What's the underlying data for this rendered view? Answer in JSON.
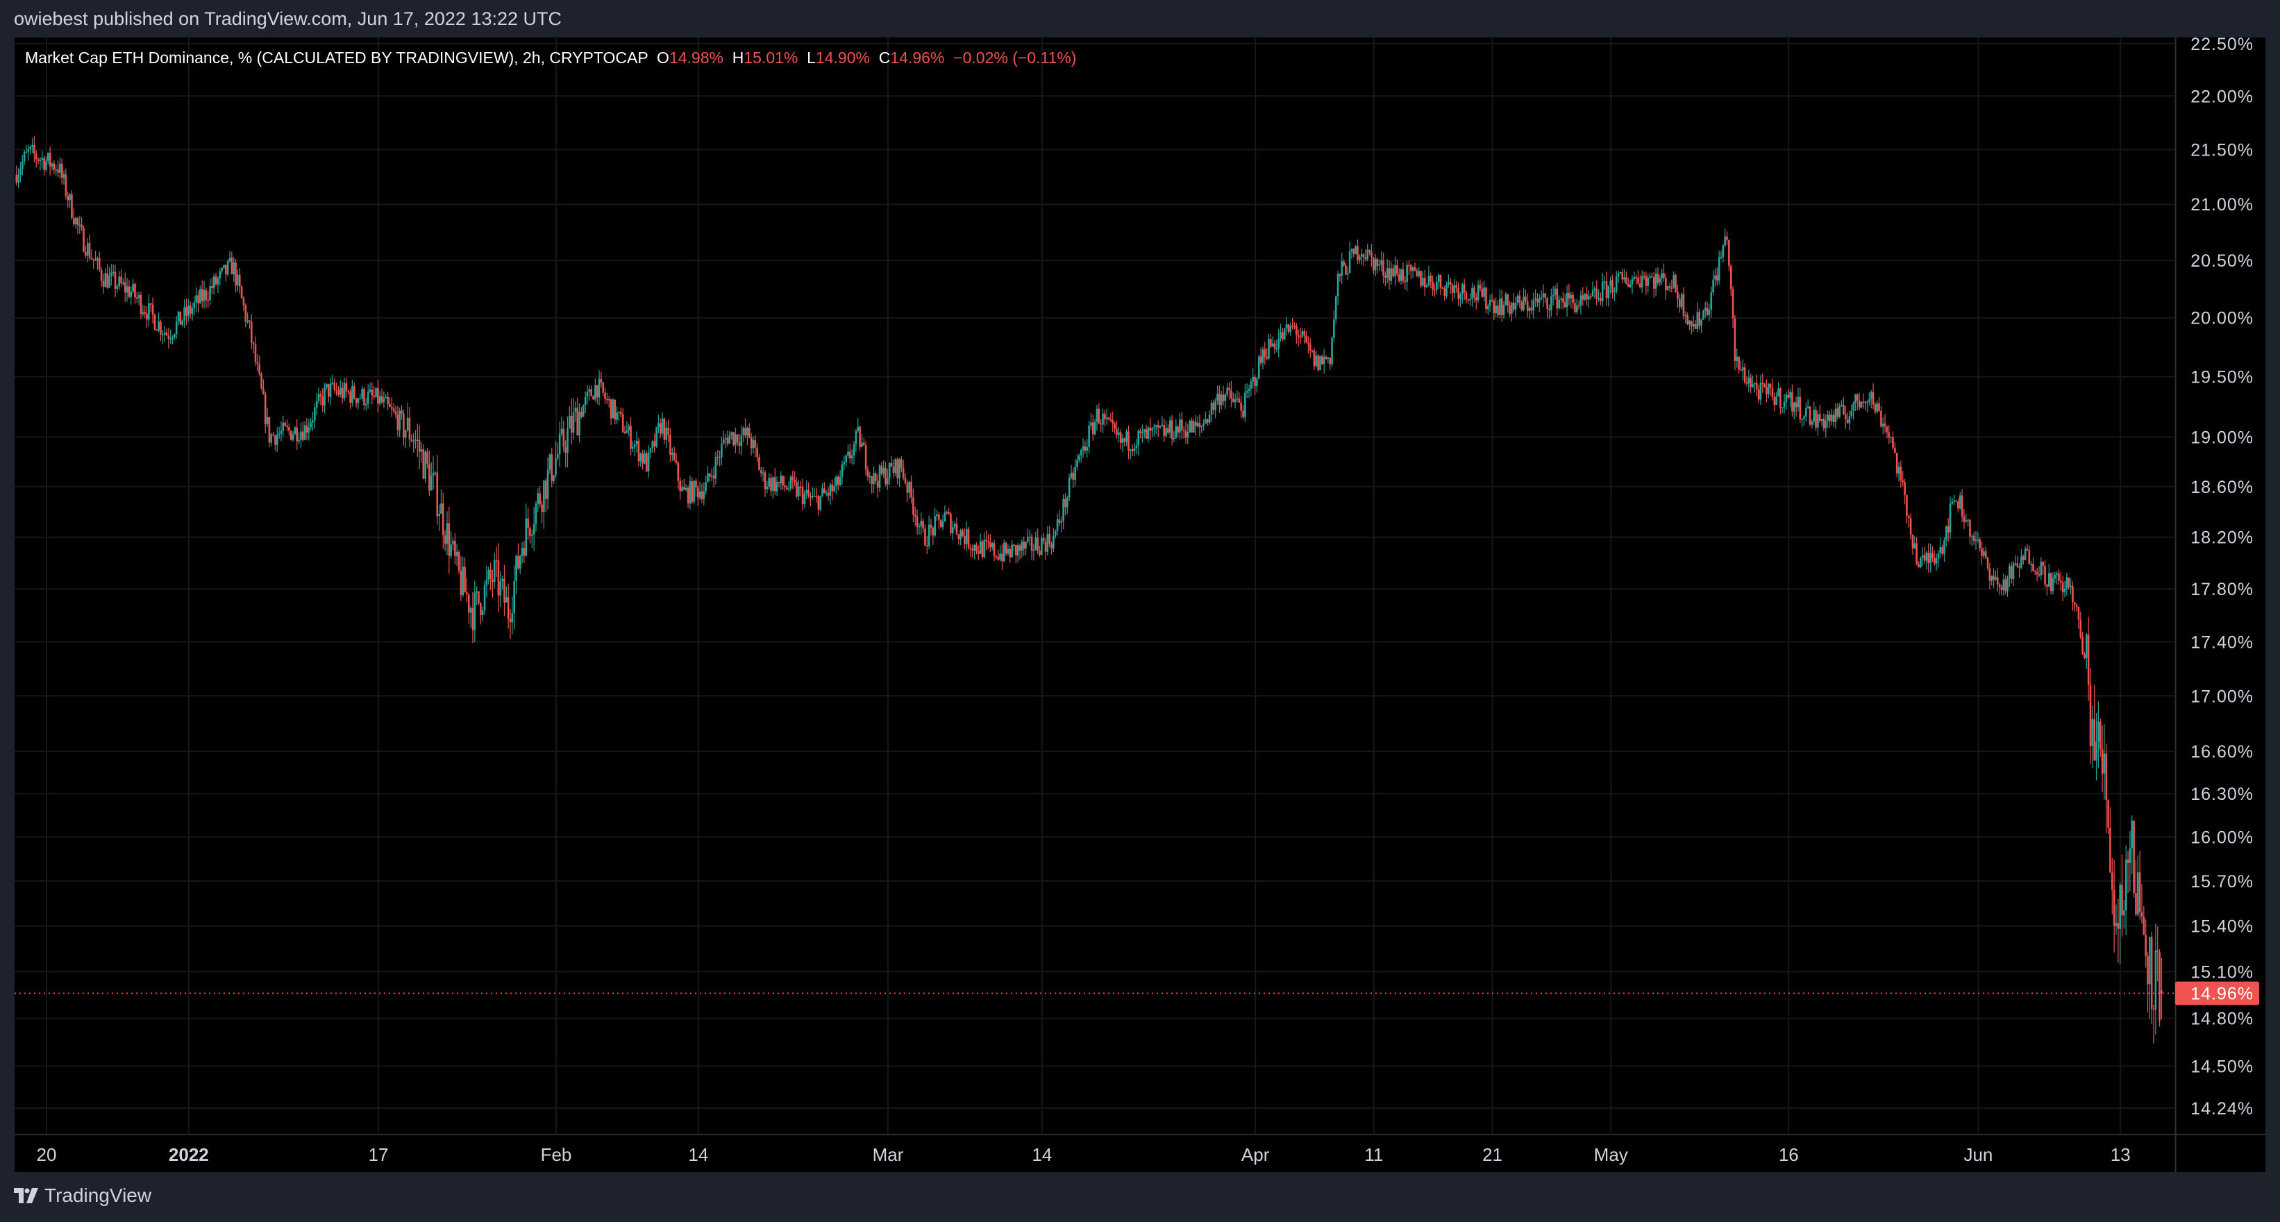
{
  "header": {
    "published": "owiebest published on TradingView.com, Jun 17, 2022 13:22 UTC"
  },
  "legend": {
    "title": "Market Cap ETH Dominance, % (CALCULATED BY TRADINGVIEW), 2h, CRYPTOCAP",
    "o_label": "O",
    "o": "14.98%",
    "h_label": "H",
    "h": "15.01%",
    "l_label": "L",
    "l": "14.90%",
    "c_label": "C",
    "c": "14.96%",
    "change": "−0.02% (−0.11%)"
  },
  "price_axis": {
    "ticks": [
      "22.50%",
      "22.00%",
      "21.50%",
      "21.00%",
      "20.50%",
      "20.00%",
      "19.50%",
      "19.00%",
      "18.60%",
      "18.20%",
      "17.80%",
      "17.40%",
      "17.00%",
      "16.60%",
      "16.30%",
      "16.00%",
      "15.70%",
      "15.40%",
      "15.10%",
      "14.80%",
      "14.50%",
      "14.24%"
    ],
    "current_label": "14.96%"
  },
  "time_axis": {
    "ticks": [
      {
        "label": "20",
        "day": 0
      },
      {
        "label": "2022",
        "day": 12,
        "bold": true
      },
      {
        "label": "17",
        "day": 28
      },
      {
        "label": "Feb",
        "day": 43
      },
      {
        "label": "14",
        "day": 55
      },
      {
        "label": "Mar",
        "day": 71
      },
      {
        "label": "14",
        "day": 84
      },
      {
        "label": "Apr",
        "day": 102
      },
      {
        "label": "11",
        "day": 112
      },
      {
        "label": "21",
        "day": 122
      },
      {
        "label": "May",
        "day": 132
      },
      {
        "label": "16",
        "day": 147
      },
      {
        "label": "Jun",
        "day": 163
      },
      {
        "label": "13",
        "day": 175
      }
    ]
  },
  "footer": {
    "brand": "TradingView"
  },
  "colors": {
    "up": "#26a69a",
    "down": "#ef5350",
    "background": "#000000",
    "frame": "#1e222d",
    "grid": "#161616"
  },
  "chart_data": {
    "type": "candlestick",
    "title": "Market Cap ETH Dominance, % (CALCULATED BY TRADINGVIEW), 2h, CRYPTOCAP",
    "x_unit": "days since 2021-12-20",
    "y_unit": "%",
    "y_scale": "log",
    "ylim": [
      14.24,
      22.5
    ],
    "last": {
      "open": 14.98,
      "high": 15.01,
      "low": 14.9,
      "close": 14.96
    },
    "close_path": [
      [
        -2.7,
        21.27
      ],
      [
        -1.5,
        21.47
      ],
      [
        1.0,
        21.34
      ],
      [
        2.8,
        20.74
      ],
      [
        4.7,
        20.36
      ],
      [
        7.1,
        20.23
      ],
      [
        10.2,
        19.86
      ],
      [
        12.0,
        20.05
      ],
      [
        15.7,
        20.46
      ],
      [
        17.2,
        19.86
      ],
      [
        18.8,
        19.01
      ],
      [
        21.8,
        19.07
      ],
      [
        23.7,
        19.39
      ],
      [
        28.0,
        19.31
      ],
      [
        31.0,
        19.01
      ],
      [
        32.9,
        18.54
      ],
      [
        34.7,
        17.91
      ],
      [
        36.0,
        17.63
      ],
      [
        37.8,
        17.91
      ],
      [
        39.0,
        17.63
      ],
      [
        40.2,
        18.19
      ],
      [
        42.7,
        18.77
      ],
      [
        44.5,
        19.13
      ],
      [
        46.4,
        19.43
      ],
      [
        48.8,
        19.07
      ],
      [
        50.7,
        18.77
      ],
      [
        51.9,
        19.13
      ],
      [
        53.7,
        18.54
      ],
      [
        55.6,
        18.59
      ],
      [
        57.4,
        19.01
      ],
      [
        59.3,
        19.01
      ],
      [
        60.5,
        18.65
      ],
      [
        62.9,
        18.59
      ],
      [
        64.8,
        18.48
      ],
      [
        66.6,
        18.59
      ],
      [
        68.5,
        19.01
      ],
      [
        69.7,
        18.65
      ],
      [
        72.1,
        18.77
      ],
      [
        74.0,
        18.19
      ],
      [
        75.8,
        18.36
      ],
      [
        78.3,
        18.13
      ],
      [
        80.7,
        18.07
      ],
      [
        83.2,
        18.13
      ],
      [
        85.0,
        18.19
      ],
      [
        86.9,
        18.77
      ],
      [
        88.7,
        19.19
      ],
      [
        90.6,
        18.95
      ],
      [
        93.0,
        19.01
      ],
      [
        95.5,
        19.07
      ],
      [
        97.3,
        19.07
      ],
      [
        99.1,
        19.37
      ],
      [
        101.0,
        19.24
      ],
      [
        102.8,
        19.73
      ],
      [
        105.3,
        19.92
      ],
      [
        107.1,
        19.61
      ],
      [
        108.3,
        19.67
      ],
      [
        109.0,
        20.36
      ],
      [
        110.8,
        20.61
      ],
      [
        112.6,
        20.43
      ],
      [
        115.1,
        20.36
      ],
      [
        117.5,
        20.3
      ],
      [
        120.0,
        20.23
      ],
      [
        122.5,
        20.11
      ],
      [
        124.9,
        20.11
      ],
      [
        127.4,
        20.17
      ],
      [
        129.8,
        20.11
      ],
      [
        132.3,
        20.3
      ],
      [
        134.7,
        20.36
      ],
      [
        137.2,
        20.3
      ],
      [
        139.0,
        19.92
      ],
      [
        140.2,
        20.11
      ],
      [
        141.8,
        20.74
      ],
      [
        142.5,
        19.61
      ],
      [
        144.5,
        19.37
      ],
      [
        147.0,
        19.31
      ],
      [
        149.4,
        19.13
      ],
      [
        151.9,
        19.19
      ],
      [
        153.7,
        19.37
      ],
      [
        155.6,
        19.01
      ],
      [
        156.8,
        18.48
      ],
      [
        158.0,
        17.97
      ],
      [
        159.9,
        18.13
      ],
      [
        161.1,
        18.54
      ],
      [
        162.9,
        18.13
      ],
      [
        164.8,
        17.8
      ],
      [
        167.2,
        18.07
      ],
      [
        169.1,
        17.86
      ],
      [
        170.9,
        17.8
      ],
      [
        172.1,
        17.2
      ],
      [
        172.8,
        16.67
      ],
      [
        173.7,
        16.46
      ],
      [
        174.6,
        15.38
      ],
      [
        175.8,
        15.95
      ],
      [
        177.0,
        15.38
      ],
      [
        177.7,
        15.08
      ],
      [
        178.5,
        14.96
      ]
    ]
  }
}
